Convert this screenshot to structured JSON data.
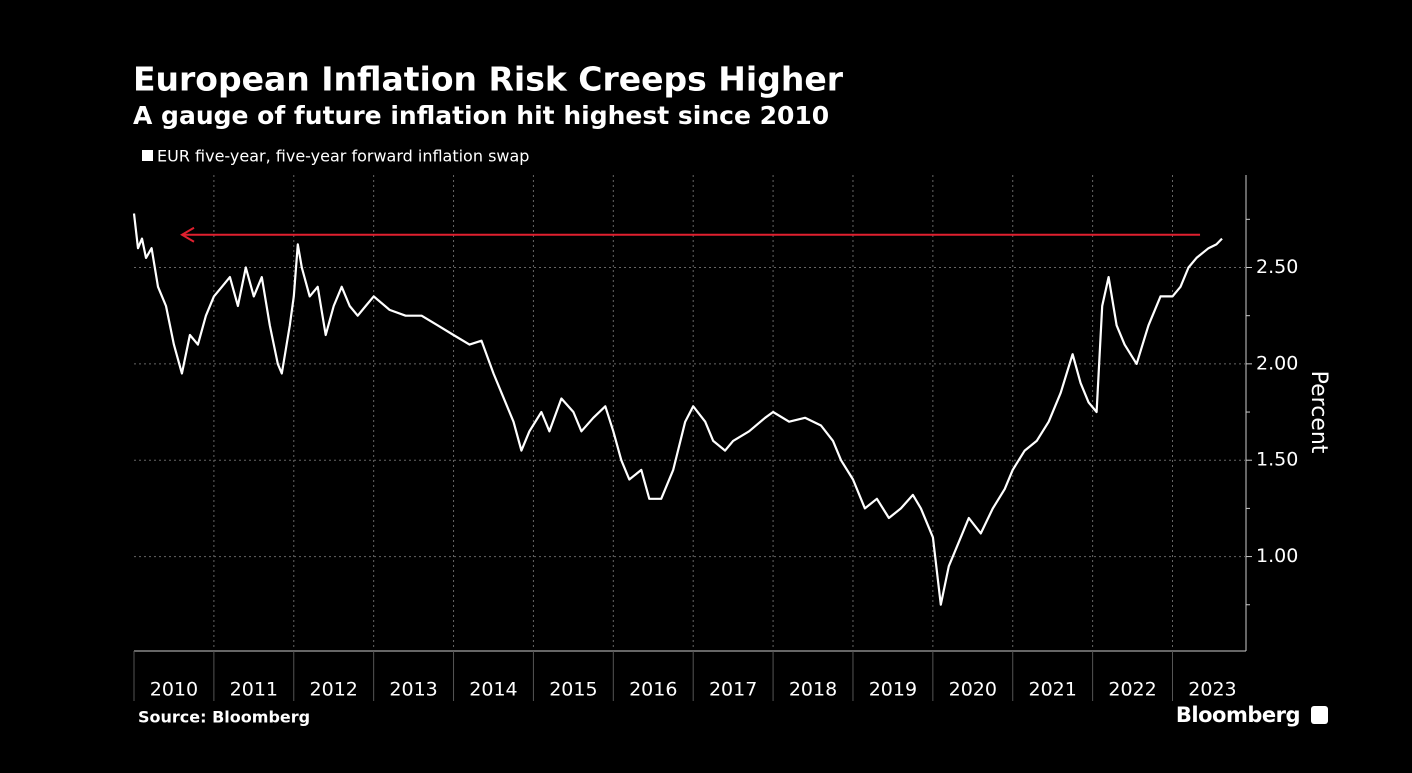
{
  "chart_data": {
    "type": "line",
    "title": "European Inflation Risk Creeps Higher",
    "subtitle": "A gauge of future inflation hit highest since 2010",
    "y_label": "Percent",
    "source": "Source: Bloomberg",
    "brand": "Bloomberg",
    "categories": [
      "2010",
      "2011",
      "2012",
      "2013",
      "2014",
      "2015",
      "2016",
      "2017",
      "2018",
      "2019",
      "2020",
      "2021",
      "2022",
      "2023"
    ],
    "xlim": [
      2010,
      2023.92
    ],
    "xticks": [
      2010,
      2011,
      2012,
      2013,
      2014,
      2015,
      2016,
      2017,
      2018,
      2019,
      2020,
      2021,
      2022,
      2023
    ],
    "ylim": [
      0.51,
      2.98
    ],
    "yticks": [
      {
        "value": 1.0,
        "label": "1.00"
      },
      {
        "value": 1.5,
        "label": "1.50"
      },
      {
        "value": 2.0,
        "label": "2.00"
      },
      {
        "value": 2.5,
        "label": "2.50"
      }
    ],
    "yminor": [
      0.75,
      1.25,
      1.75,
      2.25,
      2.75
    ],
    "grid": true,
    "highlight_level": 2.67,
    "highlight_color": "#e0202f",
    "x": [
      2010.0,
      2010.05,
      2010.1,
      2010.15,
      2010.22,
      2010.3,
      2010.4,
      2010.5,
      2010.6,
      2010.7,
      2010.8,
      2010.9,
      2011.0,
      2011.1,
      2011.2,
      2011.3,
      2011.4,
      2011.5,
      2011.6,
      2011.7,
      2011.8,
      2011.85,
      2011.95,
      2012.0,
      2012.05,
      2012.1,
      2012.2,
      2012.3,
      2012.4,
      2012.5,
      2012.6,
      2012.7,
      2012.8,
      2012.9,
      2013.0,
      2013.2,
      2013.4,
      2013.6,
      2013.8,
      2014.0,
      2014.2,
      2014.35,
      2014.5,
      2014.6,
      2014.75,
      2014.85,
      2014.95,
      2015.1,
      2015.2,
      2015.35,
      2015.5,
      2015.6,
      2015.75,
      2015.9,
      2016.0,
      2016.1,
      2016.2,
      2016.35,
      2016.45,
      2016.6,
      2016.75,
      2016.9,
      2017.0,
      2017.15,
      2017.25,
      2017.4,
      2017.5,
      2017.7,
      2017.9,
      2018.0,
      2018.2,
      2018.4,
      2018.6,
      2018.75,
      2018.85,
      2019.0,
      2019.15,
      2019.3,
      2019.45,
      2019.6,
      2019.75,
      2019.85,
      2020.0,
      2020.1,
      2020.2,
      2020.3,
      2020.45,
      2020.6,
      2020.75,
      2020.9,
      2021.0,
      2021.15,
      2021.3,
      2021.45,
      2021.6,
      2021.75,
      2021.85,
      2021.95,
      2022.05,
      2022.12,
      2022.2,
      2022.3,
      2022.4,
      2022.55,
      2022.7,
      2022.85,
      2023.0,
      2023.1,
      2023.2,
      2023.3,
      2023.45,
      2023.55,
      2023.62
    ],
    "series": [
      {
        "name": "EUR five-year, five-year forward inflation swap",
        "color": "#ffffff",
        "values": [
          2.78,
          2.6,
          2.65,
          2.55,
          2.6,
          2.4,
          2.3,
          2.1,
          1.95,
          2.15,
          2.1,
          2.25,
          2.35,
          2.4,
          2.45,
          2.3,
          2.5,
          2.35,
          2.45,
          2.2,
          2.0,
          1.95,
          2.2,
          2.35,
          2.62,
          2.5,
          2.35,
          2.4,
          2.15,
          2.3,
          2.4,
          2.3,
          2.25,
          2.3,
          2.35,
          2.28,
          2.25,
          2.25,
          2.2,
          2.15,
          2.1,
          2.12,
          1.95,
          1.85,
          1.7,
          1.55,
          1.65,
          1.75,
          1.65,
          1.82,
          1.75,
          1.65,
          1.72,
          1.78,
          1.65,
          1.5,
          1.4,
          1.45,
          1.3,
          1.3,
          1.45,
          1.7,
          1.78,
          1.7,
          1.6,
          1.55,
          1.6,
          1.65,
          1.72,
          1.75,
          1.7,
          1.72,
          1.68,
          1.6,
          1.5,
          1.4,
          1.25,
          1.3,
          1.2,
          1.25,
          1.32,
          1.25,
          1.1,
          0.75,
          0.95,
          1.05,
          1.2,
          1.12,
          1.25,
          1.35,
          1.45,
          1.55,
          1.6,
          1.7,
          1.85,
          2.05,
          1.9,
          1.8,
          1.75,
          2.3,
          2.45,
          2.2,
          2.1,
          2.0,
          2.2,
          2.35,
          2.35,
          2.4,
          2.5,
          2.55,
          2.6,
          2.62,
          2.65
        ]
      }
    ]
  }
}
